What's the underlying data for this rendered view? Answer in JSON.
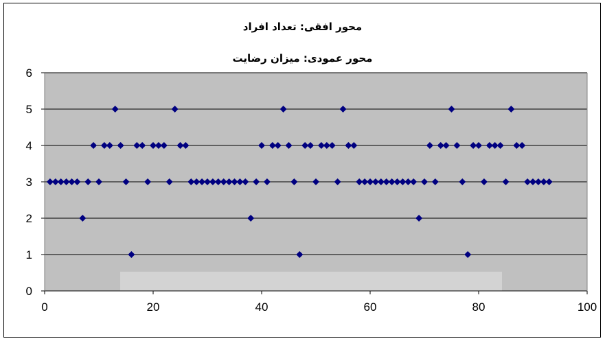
{
  "chart_data": {
    "type": "scatter",
    "title": "محور افقی: تعداد افراد",
    "subtitle": "محور عمودی: میزان رضایت",
    "xlim": [
      0,
      100
    ],
    "ylim": [
      0,
      6
    ],
    "x_ticks": [
      0,
      20,
      40,
      60,
      80,
      100
    ],
    "y_ticks": [
      0,
      1,
      2,
      3,
      4,
      5,
      6
    ],
    "grid": "horizontal",
    "legend": "none",
    "colors": {
      "plot_bg": "#c0c0c0",
      "marker": "#000080",
      "grid": "#000000"
    },
    "points": [
      [
        1,
        3
      ],
      [
        2,
        3
      ],
      [
        3,
        3
      ],
      [
        4,
        3
      ],
      [
        5,
        3
      ],
      [
        6,
        3
      ],
      [
        7,
        2
      ],
      [
        8,
        3
      ],
      [
        9,
        4
      ],
      [
        10,
        3
      ],
      [
        11,
        4
      ],
      [
        12,
        4
      ],
      [
        13,
        5
      ],
      [
        14,
        4
      ],
      [
        15,
        3
      ],
      [
        16,
        1
      ],
      [
        17,
        4
      ],
      [
        18,
        4
      ],
      [
        19,
        3
      ],
      [
        20,
        4
      ],
      [
        21,
        4
      ],
      [
        22,
        4
      ],
      [
        23,
        3
      ],
      [
        24,
        5
      ],
      [
        25,
        4
      ],
      [
        26,
        4
      ],
      [
        27,
        3
      ],
      [
        28,
        3
      ],
      [
        29,
        3
      ],
      [
        30,
        3
      ],
      [
        31,
        3
      ],
      [
        32,
        3
      ],
      [
        33,
        3
      ],
      [
        34,
        3
      ],
      [
        35,
        3
      ],
      [
        36,
        3
      ],
      [
        37,
        3
      ],
      [
        38,
        2
      ],
      [
        39,
        3
      ],
      [
        40,
        4
      ],
      [
        41,
        3
      ],
      [
        42,
        4
      ],
      [
        43,
        4
      ],
      [
        44,
        5
      ],
      [
        45,
        4
      ],
      [
        46,
        3
      ],
      [
        47,
        1
      ],
      [
        48,
        4
      ],
      [
        49,
        4
      ],
      [
        50,
        3
      ],
      [
        51,
        4
      ],
      [
        52,
        4
      ],
      [
        53,
        4
      ],
      [
        54,
        3
      ],
      [
        55,
        5
      ],
      [
        56,
        4
      ],
      [
        57,
        4
      ],
      [
        58,
        3
      ],
      [
        59,
        3
      ],
      [
        60,
        3
      ],
      [
        61,
        3
      ],
      [
        62,
        3
      ],
      [
        63,
        3
      ],
      [
        64,
        3
      ],
      [
        65,
        3
      ],
      [
        66,
        3
      ],
      [
        67,
        3
      ],
      [
        68,
        3
      ],
      [
        69,
        2
      ],
      [
        70,
        3
      ],
      [
        71,
        4
      ],
      [
        72,
        3
      ],
      [
        73,
        4
      ],
      [
        74,
        4
      ],
      [
        75,
        5
      ],
      [
        76,
        4
      ],
      [
        77,
        3
      ],
      [
        78,
        1
      ],
      [
        79,
        4
      ],
      [
        80,
        4
      ],
      [
        81,
        3
      ],
      [
        82,
        4
      ],
      [
        83,
        4
      ],
      [
        84,
        4
      ],
      [
        85,
        3
      ],
      [
        86,
        5
      ],
      [
        87,
        4
      ],
      [
        88,
        4
      ],
      [
        89,
        3
      ],
      [
        90,
        3
      ],
      [
        91,
        3
      ],
      [
        92,
        3
      ],
      [
        93,
        3
      ]
    ]
  }
}
